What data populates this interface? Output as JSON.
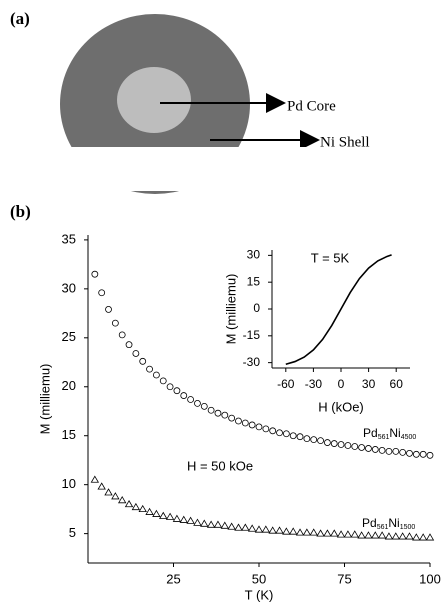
{
  "panel_a": {
    "label": "(a)",
    "core_label": "Pd Core",
    "shell_label": "Ni Shell"
  },
  "panel_b": {
    "label": "(b)"
  },
  "chart_data": [
    {
      "type": "scatter",
      "xlabel": "T (K)",
      "ylabel": "M (milliemu)",
      "annotation": "H = 50 kOe",
      "xlim": [
        0,
        100
      ],
      "ylim": [
        2,
        35.5
      ],
      "xticks": [
        25,
        50,
        75,
        100
      ],
      "yticks": [
        5,
        10,
        15,
        20,
        25,
        30,
        35
      ],
      "grid": false,
      "x": [
        2,
        4,
        6,
        8,
        10,
        12,
        14,
        16,
        18,
        20,
        22,
        24,
        26,
        28,
        30,
        32,
        34,
        36,
        38,
        40,
        42,
        44,
        46,
        48,
        50,
        52,
        54,
        56,
        58,
        60,
        62,
        64,
        66,
        68,
        70,
        72,
        74,
        76,
        78,
        80,
        82,
        84,
        86,
        88,
        90,
        92,
        94,
        96,
        98,
        100
      ],
      "series": [
        {
          "name": "Pd561Ni4500",
          "color": "#000000",
          "marker": "circle",
          "values": [
            31.5,
            29.6,
            27.9,
            26.5,
            25.3,
            24.3,
            23.4,
            22.6,
            21.8,
            21.2,
            20.6,
            20.0,
            19.6,
            19.1,
            18.7,
            18.3,
            18.0,
            17.6,
            17.3,
            17.1,
            16.8,
            16.5,
            16.3,
            16.1,
            15.9,
            15.7,
            15.5,
            15.3,
            15.2,
            15.0,
            14.9,
            14.7,
            14.6,
            14.5,
            14.3,
            14.2,
            14.1,
            14.0,
            13.9,
            13.8,
            13.7,
            13.6,
            13.5,
            13.4,
            13.4,
            13.3,
            13.2,
            13.1,
            13.1,
            13.0
          ]
        },
        {
          "name": "Pd561Ni1500",
          "color": "#000000",
          "marker": "triangle",
          "values": [
            10.5,
            9.8,
            9.2,
            8.8,
            8.4,
            8.0,
            7.7,
            7.5,
            7.2,
            7.0,
            6.8,
            6.7,
            6.5,
            6.4,
            6.3,
            6.1,
            6.0,
            5.9,
            5.9,
            5.8,
            5.7,
            5.6,
            5.6,
            5.5,
            5.4,
            5.4,
            5.3,
            5.3,
            5.2,
            5.2,
            5.1,
            5.1,
            5.1,
            5.0,
            5.0,
            5.0,
            4.9,
            4.9,
            4.9,
            4.8,
            4.8,
            4.8,
            4.8,
            4.7,
            4.7,
            4.7,
            4.7,
            4.6,
            4.6,
            4.6
          ]
        }
      ]
    },
    {
      "type": "line",
      "xlabel": "H (kOe)",
      "ylabel": "M (milliemu)",
      "annotation": "T = 5K",
      "xlim": [
        -75,
        75
      ],
      "ylim": [
        -33,
        33
      ],
      "xticks": [
        -60,
        -30,
        0,
        30,
        60
      ],
      "yticks": [
        -30,
        -15,
        0,
        15,
        30
      ],
      "grid": false,
      "x": [
        -60,
        -50,
        -40,
        -30,
        -20,
        -10,
        0,
        10,
        20,
        30,
        40,
        50,
        55
      ],
      "series": [
        {
          "color": "#000000",
          "values": [
            -30.9,
            -29.4,
            -26.9,
            -22.9,
            -17.0,
            -9.2,
            0,
            9.2,
            17.0,
            22.9,
            26.9,
            29.4,
            30.3
          ]
        }
      ]
    }
  ]
}
